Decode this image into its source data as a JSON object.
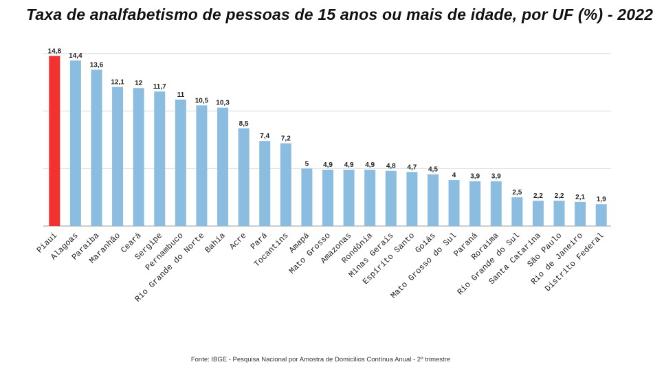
{
  "chart_data": {
    "type": "bar",
    "title": "Taxa de analfabetismo de pessoas de 15 anos ou mais de idade, por UF (%) - 2022",
    "source": "Fonte: IBGE -  Pesquisa Nacional por Amostra de Domicílios Contínua Anual - 2º trimestre",
    "xlabel": "",
    "ylabel": "",
    "ylim": [
      0,
      15
    ],
    "gridlines": [
      0,
      5,
      10,
      15
    ],
    "grid": true,
    "categories": [
      "Piauí",
      "Alagoas",
      "Paraíba",
      "Maranhão",
      "Ceará",
      "Sergipe",
      "Pernambuco",
      "Rio Grande do Norte",
      "Bahia",
      "Acre",
      "Pará",
      "Tocantins",
      "Amapá",
      "Mato Grosso",
      "Amazonas",
      "Rondônia",
      "Minas Gerais",
      "Espírito Santo",
      "Goiás",
      "Mato Grosso do Sul",
      "Paraná",
      "Roraima",
      "Rio Grande do Sul",
      "Santa Catarina",
      "São Paulo",
      "Rio de Janeiro",
      "Distrito Federal"
    ],
    "values": [
      14.8,
      14.4,
      13.6,
      12.1,
      12,
      11.7,
      11,
      10.5,
      10.3,
      8.5,
      7.4,
      7.2,
      5,
      4.9,
      4.9,
      4.9,
      4.8,
      4.7,
      4.5,
      4,
      3.9,
      3.9,
      2.5,
      2.2,
      2.2,
      2.1,
      1.9
    ],
    "value_labels": [
      "14,8",
      "14,4",
      "13,6",
      "12,1",
      "12",
      "11,7",
      "11",
      "10,5",
      "10,3",
      "8,5",
      "7,4",
      "7,2",
      "5",
      "4,9",
      "4,9",
      "4,9",
      "4,8",
      "4,7",
      "4,5",
      "4",
      "3,9",
      "3,9",
      "2,5",
      "2,2",
      "2,2",
      "2,1",
      "1,9"
    ],
    "highlight_color": "#f43131",
    "bar_color": "#8bbde0",
    "highlight_index": 0
  }
}
